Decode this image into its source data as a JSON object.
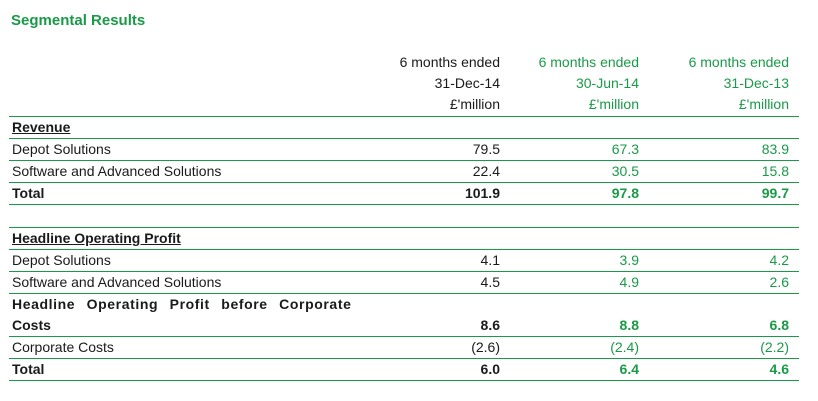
{
  "title": "Segmental Results",
  "columns": [
    {
      "line1": "6 months ended",
      "line2": "31-Dec-14",
      "line3": "£'million"
    },
    {
      "line1": "6 months ended",
      "line2": "30-Jun-14",
      "line3": "£'million"
    },
    {
      "line1": "6 months ended",
      "line2": "31-Dec-13",
      "line3": "£'million"
    }
  ],
  "revenue": {
    "heading": "Revenue",
    "rows": [
      {
        "label": "Depot Solutions",
        "v1": "79.5",
        "v2": "67.3",
        "v3": "83.9"
      },
      {
        "label": "Software and Advanced Solutions",
        "v1": "22.4",
        "v2": "30.5",
        "v3": "15.8"
      }
    ],
    "total": {
      "label": "Total",
      "v1": "101.9",
      "v2": "97.8",
      "v3": "99.7"
    }
  },
  "profit": {
    "heading": "Headline Operating Profit",
    "rows": [
      {
        "label": "Depot Solutions",
        "v1": "4.1",
        "v2": "3.9",
        "v3": "4.2"
      },
      {
        "label": "Software and Advanced Solutions",
        "v1": "4.5",
        "v2": "4.9",
        "v3": "2.6"
      }
    ],
    "before_corporate": {
      "label_line1": "Headline Operating Profit before Corporate",
      "label_line2": "Costs",
      "v1": "8.6",
      "v2": "8.8",
      "v3": "6.8"
    },
    "corporate_costs": {
      "label": "Corporate Costs",
      "v1": "(2.6)",
      "v2": "(2.4)",
      "v3": "(2.2)"
    },
    "total": {
      "label": "Total",
      "v1": "6.0",
      "v2": "6.4",
      "v3": "4.6"
    }
  }
}
